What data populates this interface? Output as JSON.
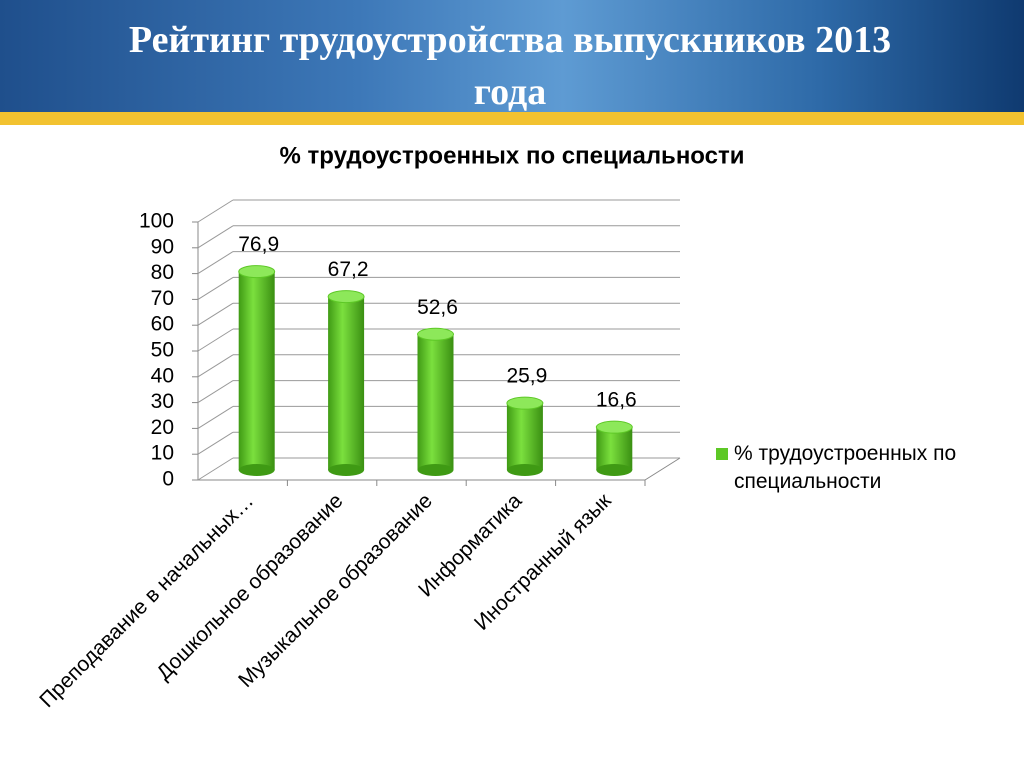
{
  "slide_title": "Рейтинг трудоустройства выпускников 2013 года",
  "chart_data": {
    "type": "bar3d",
    "title": "% трудоустроенных по специальности",
    "categories": [
      "Преподавание в начальных…",
      "Дошкольное образование",
      "Музыкальное образование",
      "Информатика",
      "Иностранный язык"
    ],
    "series": [
      {
        "name": "% трудоустроенных по специальности",
        "color": "#5dc826",
        "values": [
          76.9,
          67.2,
          52.6,
          25.9,
          16.6
        ],
        "value_labels": [
          "76,9",
          "67,2",
          "52,6",
          "25,9",
          "16,6"
        ]
      }
    ],
    "ylim": [
      0,
      100
    ],
    "yticks": [
      0,
      10,
      20,
      30,
      40,
      50,
      60,
      70,
      80,
      90,
      100
    ],
    "grid": true,
    "legend": "right"
  }
}
